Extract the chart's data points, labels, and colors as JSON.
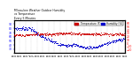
{
  "title": "Milwaukee Weather Outdoor Humidity\nvs Temperature\nEvery 5 Minutes",
  "title_fontsize": 2.2,
  "background_color": "#ffffff",
  "plot_bg_color": "#ffffff",
  "grid_color": "#b0b0b0",
  "blue_color": "#0000cc",
  "red_color": "#cc0000",
  "blue_label": "Humidity (%)",
  "red_label": "Temperature (F)",
  "ylim_left": [
    20,
    100
  ],
  "ylim_right": [
    -30,
    70
  ],
  "yticks_left": [
    30,
    40,
    50,
    60,
    70,
    80,
    90
  ],
  "yticks_right": [
    -20,
    -10,
    0,
    10,
    20,
    30,
    40,
    50,
    60
  ],
  "ytick_fontsize": 2.2,
  "xtick_fontsize": 1.6,
  "legend_fontsize": 2.0,
  "dot_size": 0.4
}
